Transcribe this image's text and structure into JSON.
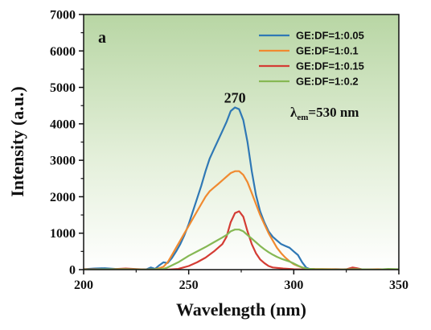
{
  "chart_data": {
    "type": "line",
    "panel_label": "a",
    "xlabel": "Wavelength (nm)",
    "ylabel": "Intensity (a.u.)",
    "xlim": [
      200,
      350
    ],
    "ylim": [
      0,
      7000
    ],
    "x_ticks": [
      200,
      250,
      300,
      350
    ],
    "y_ticks": [
      0,
      1000,
      2000,
      3000,
      4000,
      5000,
      6000,
      7000
    ],
    "grid": false,
    "background": "green gradient (dark at top, fading to white at bottom)",
    "legend_position": "top-right",
    "peak_label": {
      "text": "270",
      "x": 272,
      "y": 4450
    },
    "emission_label": {
      "symbol": "λ",
      "subscript": "em",
      "text": "=530 nm"
    },
    "series": [
      {
        "name": "GE:DF=1:0.05",
        "color": "#2f78b5",
        "points": [
          [
            200,
            10
          ],
          [
            205,
            30
          ],
          [
            210,
            40
          ],
          [
            215,
            20
          ],
          [
            220,
            10
          ],
          [
            225,
            0
          ],
          [
            230,
            10
          ],
          [
            232,
            60
          ],
          [
            234,
            20
          ],
          [
            236,
            120
          ],
          [
            238,
            200
          ],
          [
            240,
            180
          ],
          [
            242,
            320
          ],
          [
            244,
            500
          ],
          [
            246,
            700
          ],
          [
            248,
            950
          ],
          [
            250,
            1250
          ],
          [
            252,
            1600
          ],
          [
            254,
            1950
          ],
          [
            256,
            2300
          ],
          [
            258,
            2700
          ],
          [
            260,
            3050
          ],
          [
            262,
            3300
          ],
          [
            264,
            3550
          ],
          [
            266,
            3800
          ],
          [
            268,
            4050
          ],
          [
            270,
            4350
          ],
          [
            272,
            4450
          ],
          [
            274,
            4400
          ],
          [
            276,
            4100
          ],
          [
            278,
            3500
          ],
          [
            280,
            2700
          ],
          [
            282,
            2050
          ],
          [
            284,
            1600
          ],
          [
            286,
            1300
          ],
          [
            288,
            1050
          ],
          [
            290,
            900
          ],
          [
            292,
            800
          ],
          [
            294,
            700
          ],
          [
            296,
            650
          ],
          [
            298,
            600
          ],
          [
            300,
            500
          ],
          [
            302,
            400
          ],
          [
            304,
            200
          ],
          [
            306,
            50
          ],
          [
            308,
            10
          ],
          [
            312,
            0
          ],
          [
            320,
            10
          ],
          [
            330,
            0
          ],
          [
            340,
            0
          ],
          [
            350,
            0
          ]
        ]
      },
      {
        "name": "GE:DF=1:0.1",
        "color": "#f08a30",
        "points": [
          [
            200,
            10
          ],
          [
            210,
            0
          ],
          [
            220,
            10
          ],
          [
            230,
            0
          ],
          [
            234,
            10
          ],
          [
            236,
            40
          ],
          [
            238,
            80
          ],
          [
            240,
            200
          ],
          [
            242,
            400
          ],
          [
            244,
            600
          ],
          [
            246,
            800
          ],
          [
            248,
            1000
          ],
          [
            250,
            1200
          ],
          [
            252,
            1400
          ],
          [
            254,
            1600
          ],
          [
            256,
            1800
          ],
          [
            258,
            2000
          ],
          [
            260,
            2150
          ],
          [
            262,
            2250
          ],
          [
            264,
            2350
          ],
          [
            266,
            2450
          ],
          [
            268,
            2550
          ],
          [
            270,
            2650
          ],
          [
            272,
            2700
          ],
          [
            274,
            2700
          ],
          [
            276,
            2600
          ],
          [
            278,
            2400
          ],
          [
            280,
            2100
          ],
          [
            282,
            1800
          ],
          [
            284,
            1500
          ],
          [
            286,
            1250
          ],
          [
            288,
            1000
          ],
          [
            290,
            800
          ],
          [
            292,
            600
          ],
          [
            294,
            450
          ],
          [
            296,
            330
          ],
          [
            298,
            230
          ],
          [
            300,
            150
          ],
          [
            302,
            100
          ],
          [
            304,
            60
          ],
          [
            306,
            30
          ],
          [
            310,
            20
          ],
          [
            320,
            10
          ],
          [
            330,
            0
          ],
          [
            340,
            10
          ],
          [
            350,
            0
          ]
        ]
      },
      {
        "name": "GE:DF=1:0.15",
        "color": "#d43c34",
        "points": [
          [
            200,
            0
          ],
          [
            205,
            10
          ],
          [
            210,
            0
          ],
          [
            220,
            30
          ],
          [
            230,
            0
          ],
          [
            240,
            0
          ],
          [
            245,
            20
          ],
          [
            250,
            100
          ],
          [
            254,
            200
          ],
          [
            258,
            330
          ],
          [
            262,
            500
          ],
          [
            264,
            600
          ],
          [
            266,
            700
          ],
          [
            268,
            900
          ],
          [
            270,
            1300
          ],
          [
            272,
            1550
          ],
          [
            274,
            1600
          ],
          [
            276,
            1450
          ],
          [
            278,
            1050
          ],
          [
            280,
            700
          ],
          [
            282,
            450
          ],
          [
            284,
            280
          ],
          [
            286,
            180
          ],
          [
            288,
            100
          ],
          [
            290,
            60
          ],
          [
            295,
            30
          ],
          [
            300,
            10
          ],
          [
            310,
            0
          ],
          [
            320,
            0
          ],
          [
            325,
            10
          ],
          [
            328,
            60
          ],
          [
            330,
            40
          ],
          [
            333,
            0
          ],
          [
            340,
            0
          ],
          [
            350,
            0
          ]
        ]
      },
      {
        "name": "GE:DF=1:0.2",
        "color": "#86b854",
        "points": [
          [
            200,
            0
          ],
          [
            220,
            10
          ],
          [
            230,
            0
          ],
          [
            238,
            20
          ],
          [
            240,
            60
          ],
          [
            245,
            200
          ],
          [
            250,
            380
          ],
          [
            254,
            500
          ],
          [
            258,
            620
          ],
          [
            262,
            750
          ],
          [
            266,
            880
          ],
          [
            268,
            950
          ],
          [
            270,
            1050
          ],
          [
            272,
            1100
          ],
          [
            274,
            1100
          ],
          [
            276,
            1050
          ],
          [
            278,
            950
          ],
          [
            280,
            850
          ],
          [
            282,
            750
          ],
          [
            284,
            650
          ],
          [
            286,
            560
          ],
          [
            288,
            480
          ],
          [
            290,
            410
          ],
          [
            292,
            350
          ],
          [
            294,
            300
          ],
          [
            296,
            260
          ],
          [
            298,
            220
          ],
          [
            300,
            170
          ],
          [
            302,
            110
          ],
          [
            304,
            60
          ],
          [
            306,
            30
          ],
          [
            310,
            10
          ],
          [
            320,
            0
          ],
          [
            330,
            10
          ],
          [
            340,
            0
          ],
          [
            345,
            20
          ],
          [
            350,
            10
          ]
        ]
      }
    ]
  }
}
